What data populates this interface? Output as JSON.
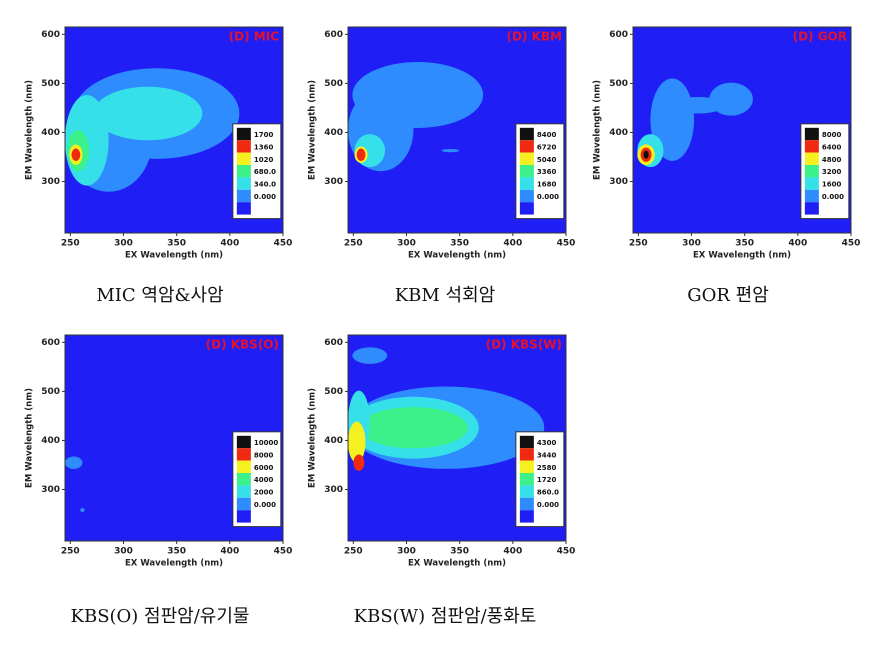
{
  "chart_data": [
    {
      "type": "contour",
      "title": "(D) MIC",
      "xlabel": "EX Wavelength (nm)",
      "ylabel": "EM Wavelength (nm)",
      "xlim": [
        245,
        450
      ],
      "ylim": [
        195,
        615
      ],
      "xticks": [
        250,
        300,
        350,
        400,
        450
      ],
      "yticks": [
        300,
        400,
        500,
        600
      ],
      "colorbar_ticks": [
        1700,
        1360,
        1020,
        {
          "value": 680,
          "label": "680.0"
        },
        {
          "value": 340,
          "label": "340.0"
        },
        {
          "value": 0,
          "label": "0.000"
        }
      ],
      "caption": "MIC 역암&사암"
    },
    {
      "type": "contour",
      "title": "(D) KBM",
      "xlabel": "EX Wavelength (nm)",
      "ylabel": "EM Wavelength (nm)",
      "xlim": [
        245,
        450
      ],
      "ylim": [
        195,
        615
      ],
      "xticks": [
        250,
        300,
        350,
        400,
        450
      ],
      "yticks": [
        300,
        400,
        500,
        600
      ],
      "colorbar_ticks": [
        8400,
        6720,
        5040,
        3360,
        1680,
        {
          "value": 0,
          "label": "0.000"
        }
      ],
      "caption": "KBM 석회암"
    },
    {
      "type": "contour",
      "title": "(D) GOR",
      "xlabel": "EX Wavelength (nm)",
      "ylabel": "EM Wavelength (nm)",
      "xlim": [
        245,
        450
      ],
      "ylim": [
        195,
        615
      ],
      "xticks": [
        250,
        300,
        350,
        400,
        450
      ],
      "yticks": [
        300,
        400,
        500,
        600
      ],
      "colorbar_ticks": [
        8000,
        6400,
        4800,
        3200,
        1600,
        {
          "value": 0,
          "label": "0.000"
        }
      ],
      "caption": "GOR 편암"
    },
    {
      "type": "contour",
      "title": "(D) KBS(O)",
      "xlabel": "EX Wavelength (nm)",
      "ylabel": "EM Wavelength (nm)",
      "xlim": [
        245,
        450
      ],
      "ylim": [
        195,
        615
      ],
      "xticks": [
        250,
        300,
        350,
        400,
        450
      ],
      "yticks": [
        300,
        400,
        500,
        600
      ],
      "colorbar_ticks": [
        10000,
        8000,
        6000,
        4000,
        2000,
        {
          "value": 0,
          "label": "0.000"
        }
      ],
      "caption": "KBS(O) 점판암/유기물"
    },
    {
      "type": "contour",
      "title": "(D) KBS(W)",
      "xlabel": "EX Wavelength (nm)",
      "ylabel": "EM Wavelength (nm)",
      "xlim": [
        245,
        450
      ],
      "ylim": [
        195,
        615
      ],
      "xticks": [
        250,
        300,
        350,
        400,
        450
      ],
      "yticks": [
        300,
        400,
        500,
        600
      ],
      "colorbar_ticks": [
        4300,
        3440,
        2580,
        1720,
        {
          "value": 860,
          "label": "860.0"
        },
        {
          "value": 0,
          "label": "0.000"
        }
      ],
      "caption": "KBS(W) 점판암/풍화토"
    }
  ]
}
